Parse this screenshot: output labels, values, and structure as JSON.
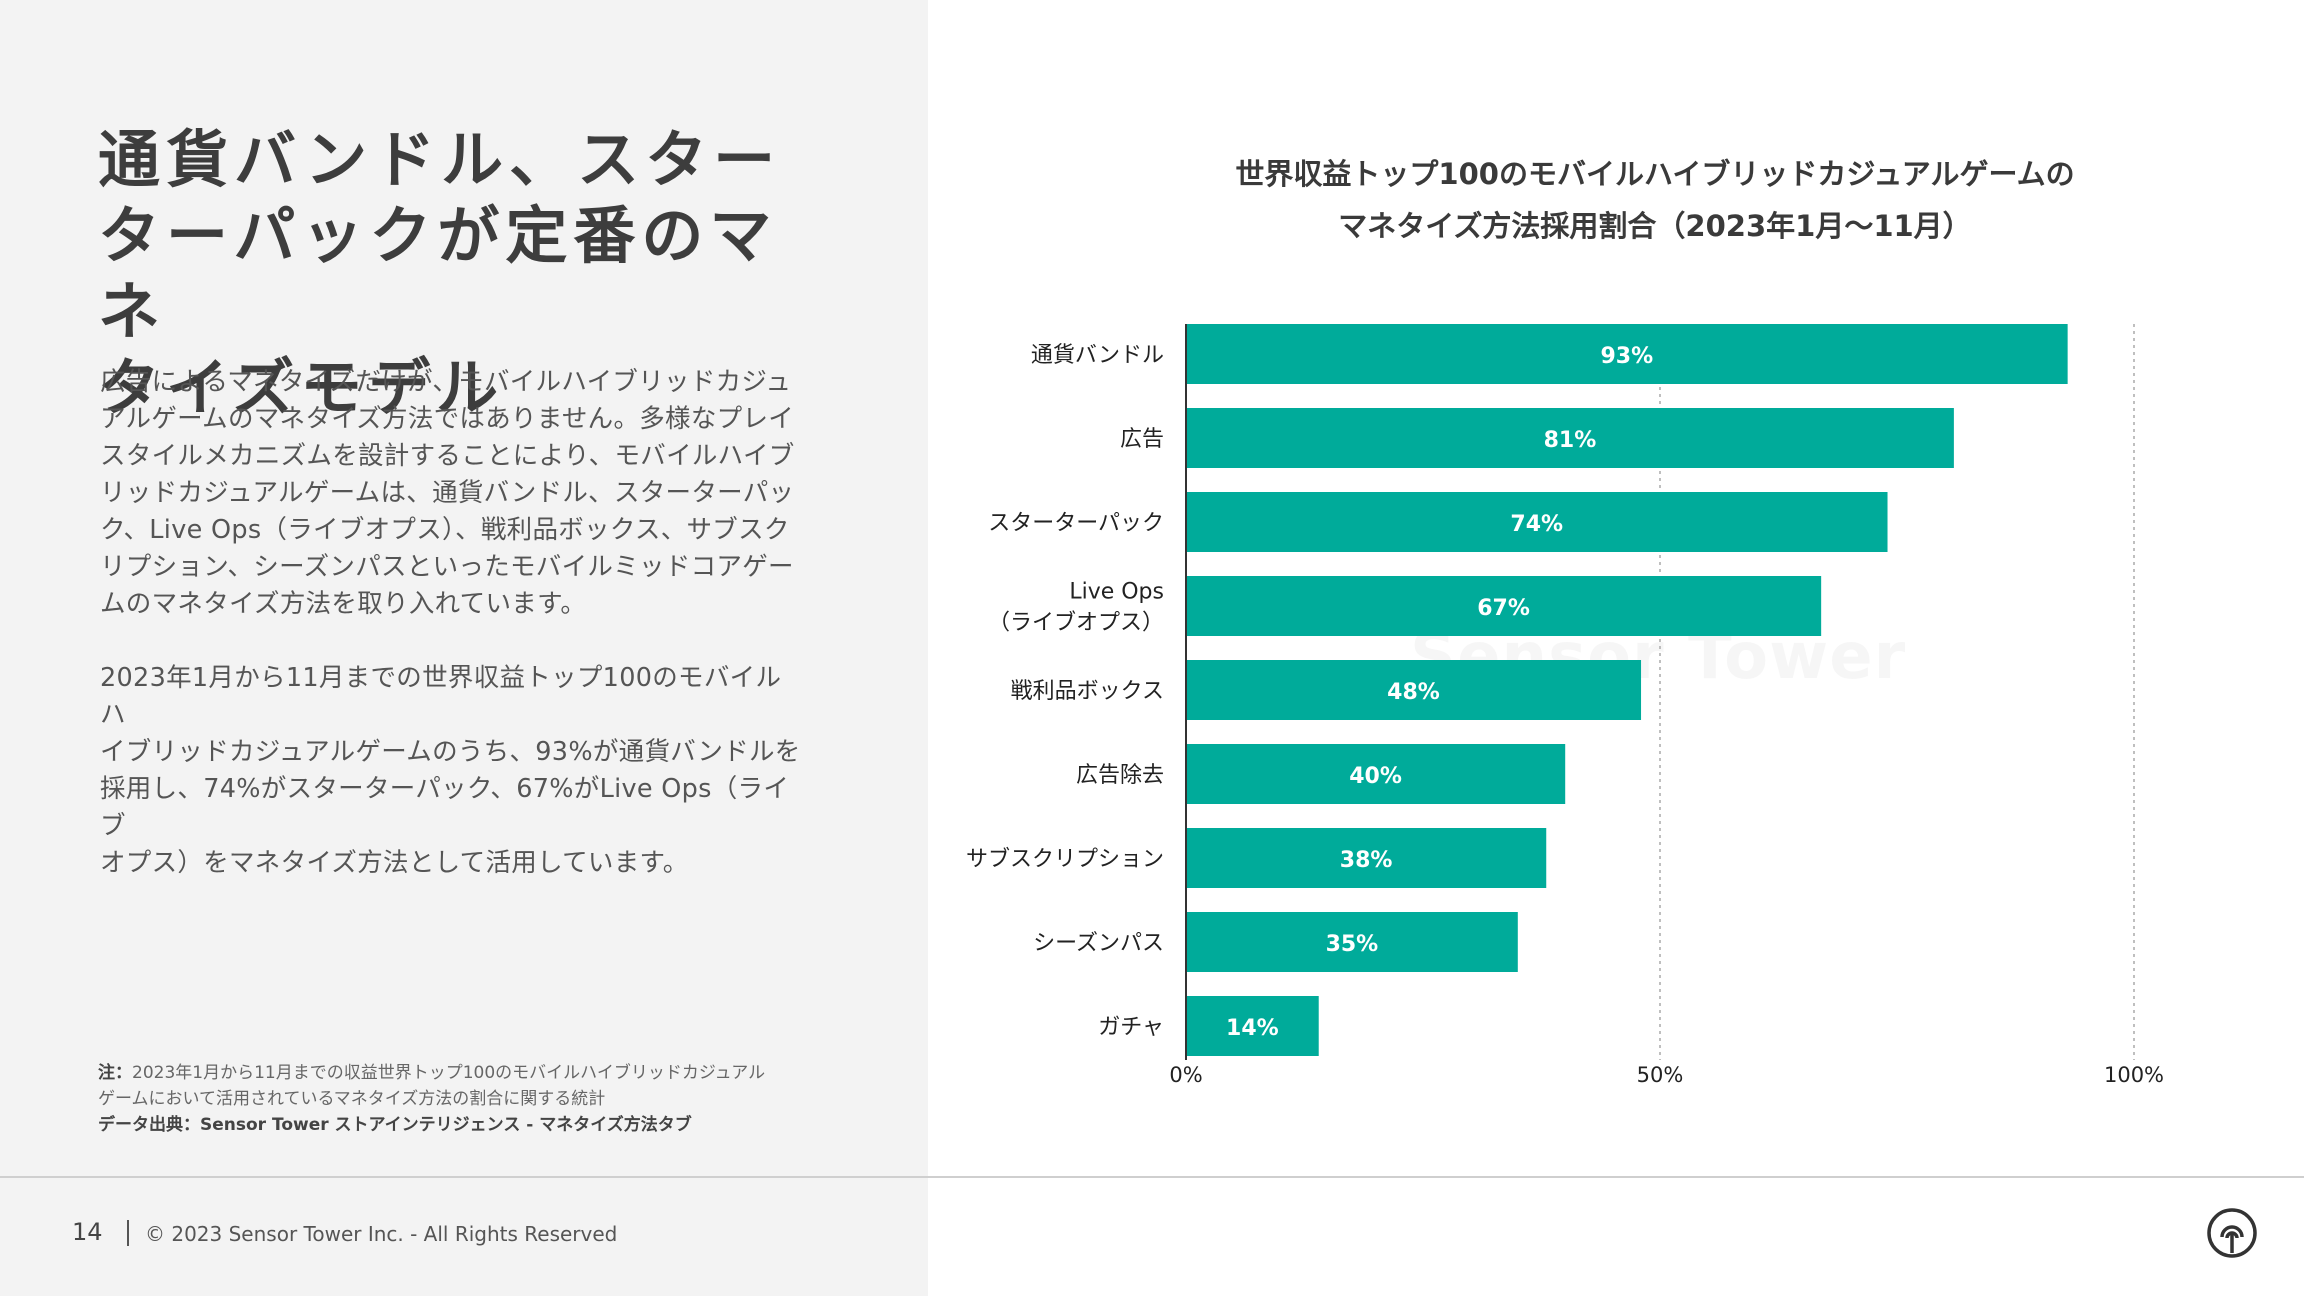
{
  "heading": {
    "line1": "通貨バンドル、スター",
    "line2": "ターパックが定番のマネ",
    "line3": "タイズモデル"
  },
  "body": {
    "para1_l1": "広告によるマネタイズだけが、モバイルハイブリッドカジュ",
    "para1_l2": "アルゲームのマネタイズ方法ではありません。多様なプレイ",
    "para1_l3": "スタイルメカニズムを設計することにより、モバイルハイブ",
    "para1_l4": "リッドカジュアルゲームは、通貨バンドル、スターターパッ",
    "para1_l5": "ク、Live Ops（ライブオプス）、戦利品ボックス、サブスク",
    "para1_l6": "リプション、シーズンパスといったモバイルミッドコアゲー",
    "para1_l7": "ムのマネタイズ方法を取り入れています。",
    "para2_l1": "2023年1月から11月までの世界収益トップ100のモバイルハ",
    "para2_l2": "イブリッドカジュアルゲームのうち、93%が通貨バンドルを",
    "para2_l3": "採用し、74%がスターターパック、67%がLive Ops（ライブ",
    "para2_l4": "オプス）をマネタイズ方法として活用しています。"
  },
  "note": {
    "label": "注：",
    "line1": "2023年1月から11月までの収益世界トップ100のモバイルハイブリッドカジュアル",
    "line2": "ゲームにおいて活用されているマネタイズ方法の割合に関する統計",
    "source": "データ出典：Sensor Tower ストアインテリジェンス - マネタイズ方法タブ"
  },
  "footer": {
    "page": "14",
    "copyright": "© 2023 Sensor Tower Inc. - All Rights Reserved"
  },
  "watermark": "Sensor Tower",
  "colors": {
    "bar": "#00ab9a",
    "grid": "#aaaaaa"
  },
  "chart_data": {
    "type": "bar",
    "orientation": "horizontal",
    "title_line1": "世界収益トップ100のモバイルハイブリッドカジュアルゲームの",
    "title_line2": "マネタイズ方法採用割合（2023年1月〜11月）",
    "categories": [
      [
        "通貨バンドル"
      ],
      [
        "広告"
      ],
      [
        "スターターパック"
      ],
      [
        "Live Ops",
        "（ライブオプス）"
      ],
      [
        "戦利品ボックス"
      ],
      [
        "広告除去"
      ],
      [
        "サブスクリプション"
      ],
      [
        "シーズンパス"
      ],
      [
        "ガチャ"
      ]
    ],
    "values": [
      93,
      81,
      74,
      67,
      48,
      40,
      38,
      35,
      14
    ],
    "value_labels": [
      "93%",
      "81%",
      "74%",
      "67%",
      "48%",
      "40%",
      "38%",
      "35%",
      "14%"
    ],
    "xlim": [
      0,
      100
    ],
    "xticks": [
      0,
      50,
      100
    ],
    "xtick_labels": [
      "0%",
      "50%",
      "100%"
    ],
    "grid": true
  }
}
